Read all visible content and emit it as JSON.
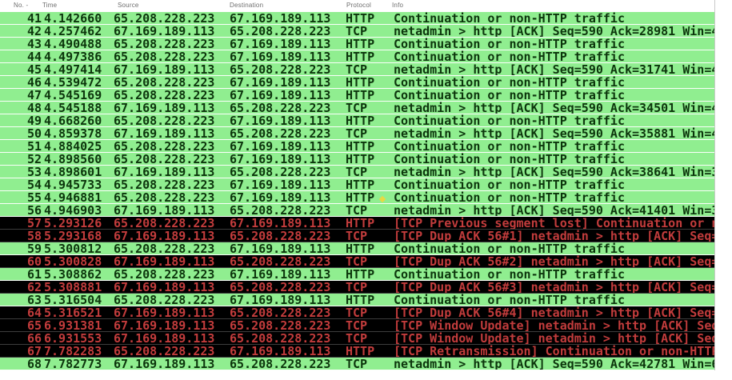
{
  "app": "wireshark-packet-list",
  "colors": {
    "row_ok_bg": "#90EE90",
    "row_ok_text": "#0c350c",
    "row_bad_bg": "#000000",
    "row_bad_text": "#c23c3c",
    "header_text": "#6e6e6e",
    "pointer_artifact": "#ecd73f"
  },
  "table": {
    "columns": [
      {
        "label": "No. -"
      },
      {
        "label": "Time"
      },
      {
        "label": "Source"
      },
      {
        "label": "Destination"
      },
      {
        "label": "Protocol"
      },
      {
        "label": "Info"
      }
    ],
    "rows": [
      {
        "no": "41",
        "time": "4.142660",
        "src": "65.208.228.223",
        "dst": "67.169.189.113",
        "proto": "HTTP",
        "info": "Continuation or non-HTTP traffic",
        "status": "ok"
      },
      {
        "no": "42",
        "time": "4.257462",
        "src": "67.169.189.113",
        "dst": "65.208.228.223",
        "proto": "TCP",
        "info": "netadmin > http [ACK] Seq=590 Ack=28981 Win=4",
        "status": "ok"
      },
      {
        "no": "43",
        "time": "4.490488",
        "src": "65.208.228.223",
        "dst": "67.169.189.113",
        "proto": "HTTP",
        "info": "Continuation or non-HTTP traffic",
        "status": "ok"
      },
      {
        "no": "44",
        "time": "4.497386",
        "src": "65.208.228.223",
        "dst": "67.169.189.113",
        "proto": "HTTP",
        "info": "Continuation or non-HTTP traffic",
        "status": "ok"
      },
      {
        "no": "45",
        "time": "4.497414",
        "src": "67.169.189.113",
        "dst": "65.208.228.223",
        "proto": "TCP",
        "info": "netadmin > http [ACK] Seq=590 Ack=31741 Win=4",
        "status": "ok"
      },
      {
        "no": "46",
        "time": "4.539472",
        "src": "65.208.228.223",
        "dst": "67.169.189.113",
        "proto": "HTTP",
        "info": "Continuation or non-HTTP traffic",
        "status": "ok"
      },
      {
        "no": "47",
        "time": "4.545169",
        "src": "65.208.228.223",
        "dst": "67.169.189.113",
        "proto": "HTTP",
        "info": "Continuation or non-HTTP traffic",
        "status": "ok"
      },
      {
        "no": "48",
        "time": "4.545188",
        "src": "67.169.189.113",
        "dst": "65.208.228.223",
        "proto": "TCP",
        "info": "netadmin > http [ACK] Seq=590 Ack=34501 Win=4",
        "status": "ok"
      },
      {
        "no": "49",
        "time": "4.668260",
        "src": "65.208.228.223",
        "dst": "67.169.189.113",
        "proto": "HTTP",
        "info": "Continuation or non-HTTP traffic",
        "status": "ok"
      },
      {
        "no": "50",
        "time": "4.859378",
        "src": "67.169.189.113",
        "dst": "65.208.228.223",
        "proto": "TCP",
        "info": "netadmin > http [ACK] Seq=590 Ack=35881 Win=4",
        "status": "ok"
      },
      {
        "no": "51",
        "time": "4.884025",
        "src": "65.208.228.223",
        "dst": "67.169.189.113",
        "proto": "HTTP",
        "info": "Continuation or non-HTTP traffic",
        "status": "ok"
      },
      {
        "no": "52",
        "time": "4.898560",
        "src": "65.208.228.223",
        "dst": "67.169.189.113",
        "proto": "HTTP",
        "info": "Continuation or non-HTTP traffic",
        "status": "ok"
      },
      {
        "no": "53",
        "time": "4.898601",
        "src": "67.169.189.113",
        "dst": "65.208.228.223",
        "proto": "TCP",
        "info": "netadmin > http [ACK] Seq=590 Ack=38641 Win=3",
        "status": "ok"
      },
      {
        "no": "54",
        "time": "4.945733",
        "src": "65.208.228.223",
        "dst": "67.169.189.113",
        "proto": "HTTP",
        "info": "Continuation or non-HTTP traffic",
        "status": "ok"
      },
      {
        "no": "55",
        "time": "4.946881",
        "src": "65.208.228.223",
        "dst": "67.169.189.113",
        "proto": "HTTP",
        "info": "Continuation or non-HTTP traffic",
        "status": "ok"
      },
      {
        "no": "56",
        "time": "4.946903",
        "src": "67.169.189.113",
        "dst": "65.208.228.223",
        "proto": "TCP",
        "info": "netadmin > http [ACK] Seq=590 Ack=41401 Win=3",
        "status": "ok"
      },
      {
        "no": "57",
        "time": "5.293126",
        "src": "65.208.228.223",
        "dst": "67.169.189.113",
        "proto": "HTTP",
        "info": "[TCP Previous segment lost] Continuation or n",
        "status": "bad"
      },
      {
        "no": "58",
        "time": "5.293168",
        "src": "67.169.189.113",
        "dst": "65.208.228.223",
        "proto": "TCP",
        "info": "[TCP Dup ACK 56#1] netadmin > http [ACK] Seq=",
        "status": "bad"
      },
      {
        "no": "59",
        "time": "5.300812",
        "src": "65.208.228.223",
        "dst": "67.169.189.113",
        "proto": "HTTP",
        "info": "Continuation or non-HTTP traffic",
        "status": "ok"
      },
      {
        "no": "60",
        "time": "5.300828",
        "src": "67.169.189.113",
        "dst": "65.208.228.223",
        "proto": "TCP",
        "info": "[TCP Dup ACK 56#2] netadmin > http [ACK] Seq=",
        "status": "bad"
      },
      {
        "no": "61",
        "time": "5.308862",
        "src": "65.208.228.223",
        "dst": "67.169.189.113",
        "proto": "HTTP",
        "info": "Continuation or non-HTTP traffic",
        "status": "ok"
      },
      {
        "no": "62",
        "time": "5.308881",
        "src": "67.169.189.113",
        "dst": "65.208.228.223",
        "proto": "TCP",
        "info": "[TCP Dup ACK 56#3] netadmin > http [ACK] Seq=",
        "status": "bad"
      },
      {
        "no": "63",
        "time": "5.316504",
        "src": "65.208.228.223",
        "dst": "67.169.189.113",
        "proto": "HTTP",
        "info": "Continuation or non-HTTP traffic",
        "status": "ok"
      },
      {
        "no": "64",
        "time": "5.316521",
        "src": "67.169.189.113",
        "dst": "65.208.228.223",
        "proto": "TCP",
        "info": "[TCP Dup ACK 56#4] netadmin > http [ACK] Seq=",
        "status": "bad"
      },
      {
        "no": "65",
        "time": "6.931381",
        "src": "67.169.189.113",
        "dst": "65.208.228.223",
        "proto": "TCP",
        "info": "[TCP Window Update] netadmin > http [ACK] Seq",
        "status": "bad"
      },
      {
        "no": "66",
        "time": "6.931553",
        "src": "67.169.189.113",
        "dst": "65.208.228.223",
        "proto": "TCP",
        "info": "[TCP Window Update] netadmin > http [ACK] Seq",
        "status": "bad"
      },
      {
        "no": "67",
        "time": "7.782283",
        "src": "65.208.228.223",
        "dst": "67.169.189.113",
        "proto": "HTTP",
        "info": "[TCP Retransmission] Continuation or non-HTTP",
        "status": "bad"
      },
      {
        "no": "68",
        "time": "7.782773",
        "src": "67.169.189.113",
        "dst": "65.208.228.223",
        "proto": "TCP",
        "info": "netadmin > http [ACK] Seq=590 Ack=42781 Win=6",
        "status": "ok"
      }
    ]
  }
}
